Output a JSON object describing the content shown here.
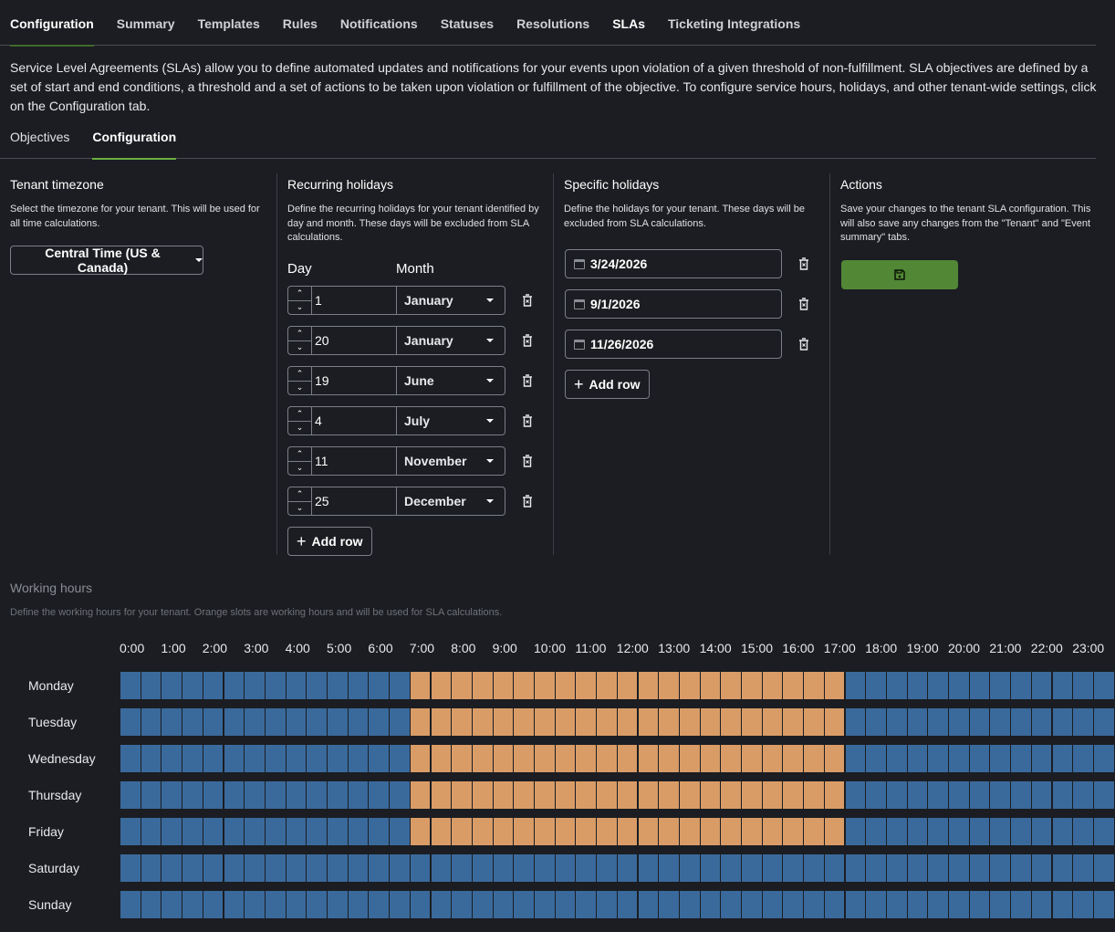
{
  "tabs": [
    "Configuration",
    "Summary",
    "Templates",
    "Rules",
    "Notifications",
    "Statuses",
    "Resolutions",
    "SLAs",
    "Ticketing Integrations"
  ],
  "description": "Service Level Agreements (SLAs) allow you to define automated updates and notifications for your events upon violation of a given threshold of non-fulfillment. SLA objectives are defined by a set of start and end conditions, a threshold and a set of actions to be taken upon violation or fulfillment of the objective. To configure service hours, holidays, and other tenant-wide settings, click on the Configuration tab.",
  "subtabs": [
    "Objectives",
    "Configuration"
  ],
  "timezone": {
    "title": "Tenant timezone",
    "help": "Select the timezone for your tenant. This will be used for all time calculations.",
    "value": "Central Time (US & Canada)"
  },
  "recurring": {
    "title": "Recurring holidays",
    "help": "Define the recurring holidays for your tenant identified by day and month. These days will be excluded from SLA calculations.",
    "day_header": "Day",
    "month_header": "Month",
    "rows": [
      {
        "day": "1",
        "month": "January"
      },
      {
        "day": "20",
        "month": "January"
      },
      {
        "day": "19",
        "month": "June"
      },
      {
        "day": "4",
        "month": "July"
      },
      {
        "day": "11",
        "month": "November"
      },
      {
        "day": "25",
        "month": "December"
      }
    ],
    "add_label": "Add row"
  },
  "specific": {
    "title": "Specific holidays",
    "help": "Define the holidays for your tenant. These days will be excluded from SLA calculations.",
    "dates": [
      "3/24/2026",
      "9/1/2026",
      "11/26/2026"
    ],
    "add_label": "Add row"
  },
  "actions": {
    "title": "Actions",
    "help": "Save your changes to the tenant SLA configuration. This will also save any changes from the \"Tenant\" and \"Event summary\" tabs."
  },
  "working_hours": {
    "title": "Working hours",
    "help": "Define the working hours for your tenant. Orange slots are working hours and will be used for SLA calculations.",
    "hour_labels": [
      "0:00",
      "1:00",
      "2:00",
      "3:00",
      "4:00",
      "5:00",
      "6:00",
      "7:00",
      "8:00",
      "9:00",
      "10:00",
      "11:00",
      "12:00",
      "13:00",
      "14:00",
      "15:00",
      "16:00",
      "17:00",
      "18:00",
      "19:00",
      "20:00",
      "21:00",
      "22:00",
      "23:00"
    ],
    "slot_minutes": 30,
    "days": [
      {
        "name": "Monday",
        "work": [
          "7:00",
          "17:30"
        ]
      },
      {
        "name": "Tuesday",
        "work": [
          "7:00",
          "17:30"
        ]
      },
      {
        "name": "Wednesday",
        "work": [
          "7:00",
          "17:30"
        ]
      },
      {
        "name": "Thursday",
        "work": [
          "7:00",
          "17:30"
        ]
      },
      {
        "name": "Friday",
        "work": [
          "7:00",
          "17:30"
        ]
      },
      {
        "name": "Saturday",
        "work": null
      },
      {
        "name": "Sunday",
        "work": null
      }
    ],
    "colors": {
      "working": "#d99c67",
      "non_working": "#3a6a9c"
    }
  }
}
